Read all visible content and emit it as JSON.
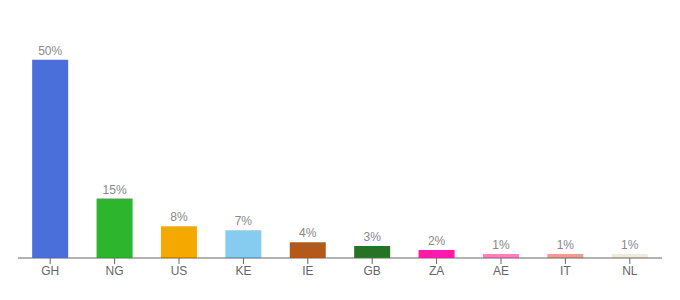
{
  "chart_data": {
    "type": "bar",
    "categories": [
      "GH",
      "NG",
      "US",
      "KE",
      "IE",
      "GB",
      "ZA",
      "AE",
      "IT",
      "NL"
    ],
    "values": [
      50,
      15,
      8,
      7,
      4,
      3,
      2,
      1,
      1,
      1
    ],
    "value_labels": [
      "50%",
      "15%",
      "8%",
      "7%",
      "4%",
      "3%",
      "2%",
      "1%",
      "1%",
      "1%"
    ],
    "colors": [
      "#4a6fdb",
      "#2db52d",
      "#f5a800",
      "#85ccf0",
      "#b35a1a",
      "#267326",
      "#ff1aaa",
      "#ff80c0",
      "#e8a090",
      "#f0ead8"
    ],
    "ylim": [
      0,
      57
    ],
    "data_labels": true,
    "tick_labels": "x",
    "grid": false
  }
}
